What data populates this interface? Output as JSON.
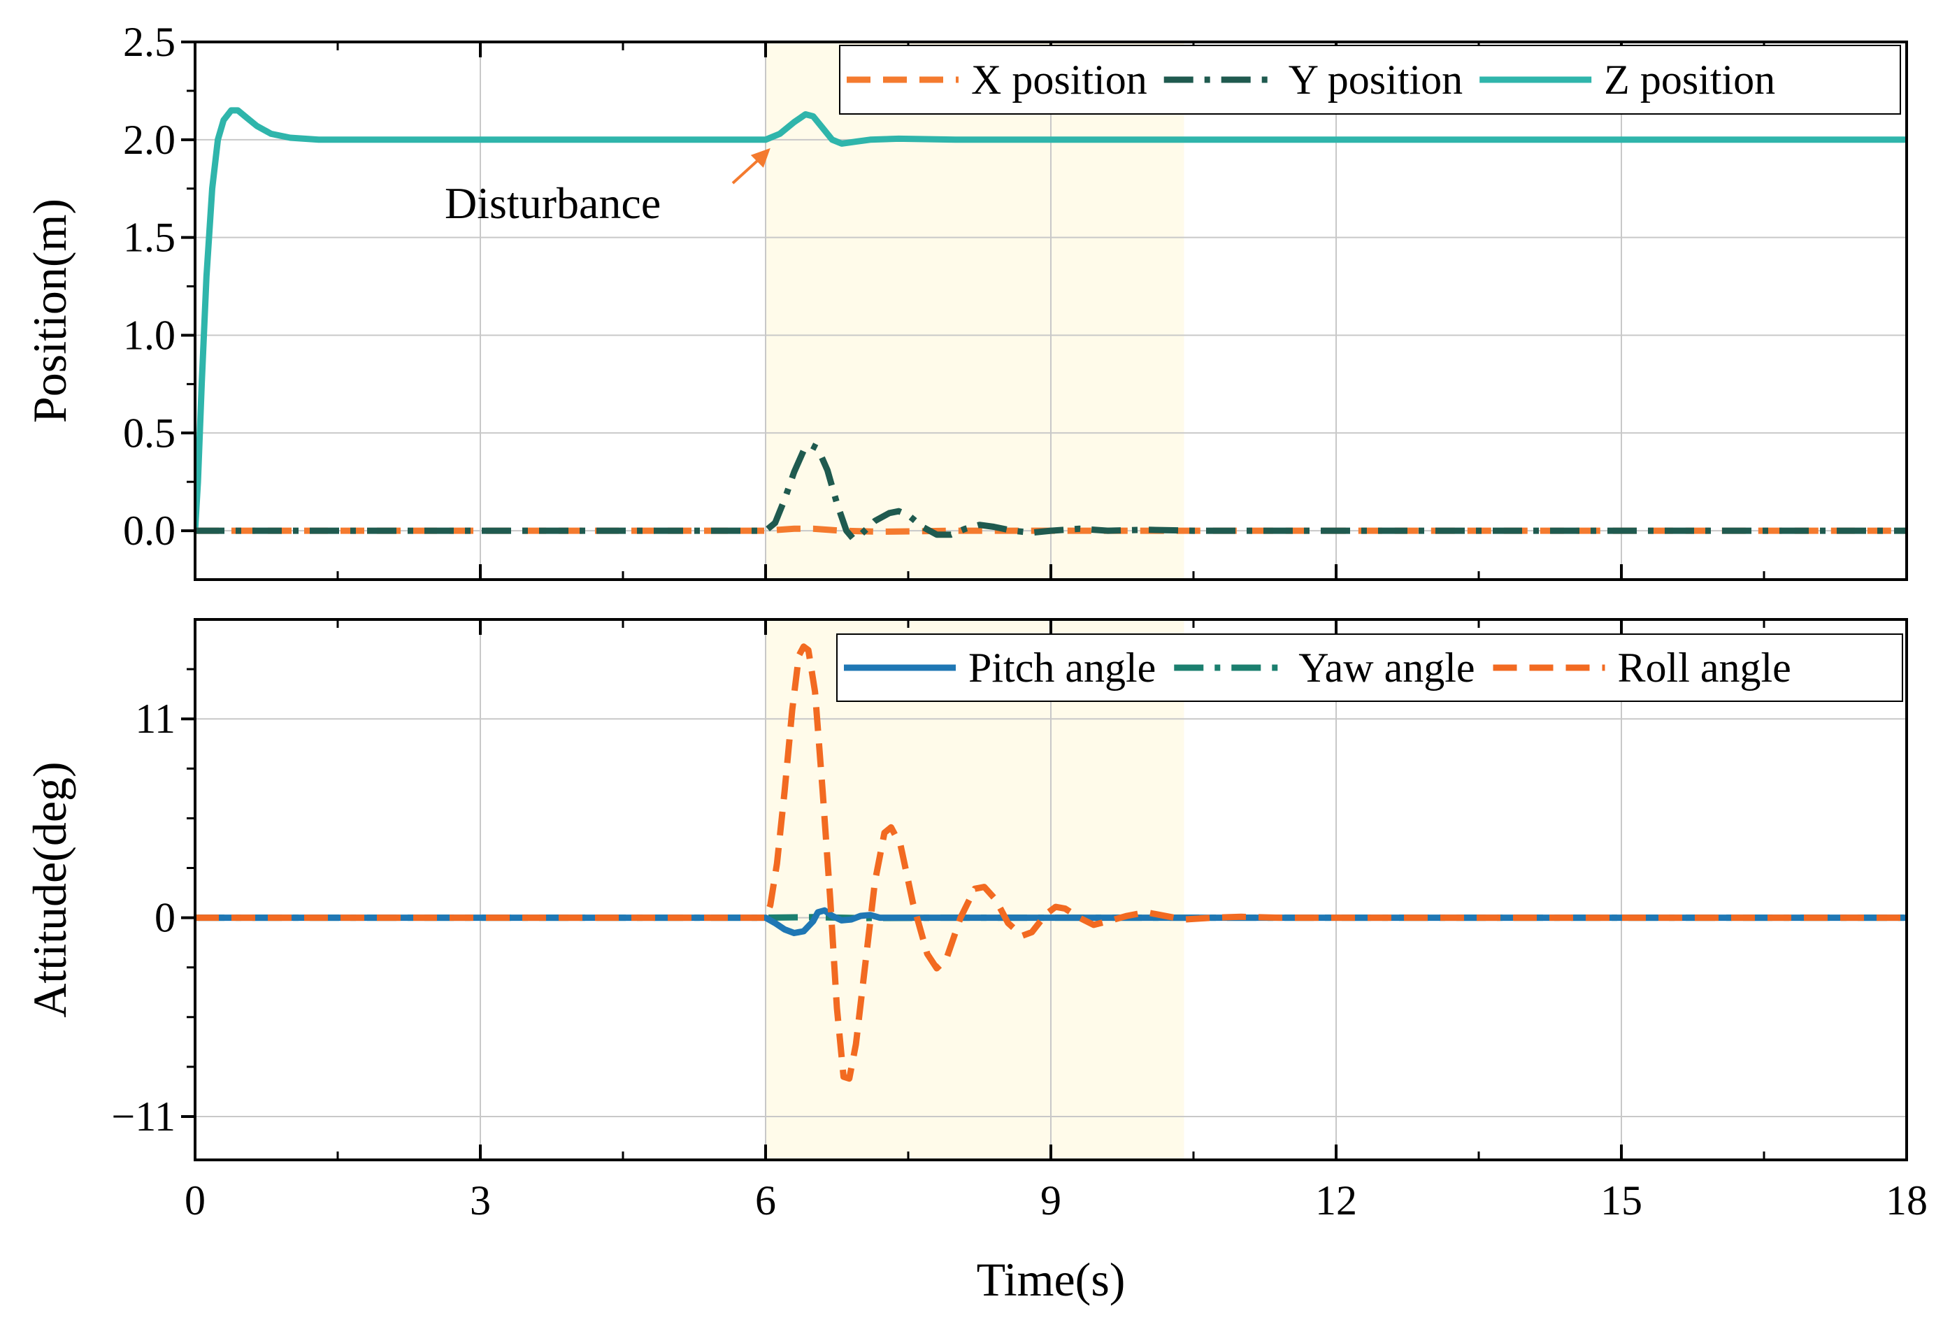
{
  "chart_data": [
    {
      "type": "line",
      "ylabel": "Position(m)",
      "xlim": [
        0,
        18
      ],
      "ylim": [
        -0.25,
        2.5
      ],
      "xticks": [
        0,
        3,
        6,
        9,
        12,
        15,
        18
      ],
      "yticks": [
        0.0,
        0.5,
        1.0,
        1.5,
        2.0,
        2.5
      ],
      "ytick_labels": [
        "0.0",
        "0.5",
        "1.0",
        "1.5",
        "2.0",
        "2.5"
      ],
      "grid": true,
      "legend_position": "top-right",
      "shaded_region": {
        "x_start": 6.0,
        "x_end": 10.4,
        "color": "#fffbea"
      },
      "annotation": {
        "text": "Disturbance",
        "arrow_to": [
          6.05,
          2.0
        ]
      },
      "series": [
        {
          "name": "X position",
          "color": "#f47a2e",
          "style": "dashed",
          "points": [
            [
              0,
              0
            ],
            [
              6.0,
              0
            ],
            [
              6.3,
              0.01
            ],
            [
              6.5,
              0.01
            ],
            [
              6.8,
              0.0
            ],
            [
              7.2,
              -0.005
            ],
            [
              8,
              0
            ],
            [
              18,
              0
            ]
          ]
        },
        {
          "name": "Y position",
          "color": "#1f5a4f",
          "style": "dashdot",
          "points": [
            [
              0,
              0
            ],
            [
              6.0,
              0
            ],
            [
              6.1,
              0.04
            ],
            [
              6.2,
              0.16
            ],
            [
              6.3,
              0.3
            ],
            [
              6.4,
              0.41
            ],
            [
              6.47,
              0.44
            ],
            [
              6.55,
              0.42
            ],
            [
              6.65,
              0.31
            ],
            [
              6.75,
              0.14
            ],
            [
              6.85,
              0.0
            ],
            [
              6.92,
              -0.04
            ],
            [
              7.0,
              -0.02
            ],
            [
              7.15,
              0.05
            ],
            [
              7.3,
              0.09
            ],
            [
              7.4,
              0.1
            ],
            [
              7.5,
              0.08
            ],
            [
              7.65,
              0.02
            ],
            [
              7.8,
              -0.02
            ],
            [
              7.95,
              -0.02
            ],
            [
              8.1,
              0.01
            ],
            [
              8.25,
              0.03
            ],
            [
              8.4,
              0.02
            ],
            [
              8.6,
              0.0
            ],
            [
              8.8,
              -0.01
            ],
            [
              9.0,
              0.0
            ],
            [
              9.3,
              0.01
            ],
            [
              9.6,
              0.0
            ],
            [
              10.0,
              0.005
            ],
            [
              10.5,
              0.0
            ],
            [
              18,
              0
            ]
          ]
        },
        {
          "name": "Z position",
          "color": "#2fb5ab",
          "style": "solid",
          "points": [
            [
              0,
              0
            ],
            [
              0.03,
              0.25
            ],
            [
              0.07,
              0.75
            ],
            [
              0.12,
              1.3
            ],
            [
              0.18,
              1.75
            ],
            [
              0.24,
              2.0
            ],
            [
              0.3,
              2.1
            ],
            [
              0.38,
              2.15
            ],
            [
              0.45,
              2.15
            ],
            [
              0.55,
              2.11
            ],
            [
              0.65,
              2.07
            ],
            [
              0.8,
              2.03
            ],
            [
              1.0,
              2.01
            ],
            [
              1.3,
              2.0
            ],
            [
              6.0,
              2.0
            ],
            [
              6.15,
              2.03
            ],
            [
              6.3,
              2.09
            ],
            [
              6.42,
              2.13
            ],
            [
              6.5,
              2.12
            ],
            [
              6.6,
              2.06
            ],
            [
              6.7,
              2.0
            ],
            [
              6.8,
              1.98
            ],
            [
              6.95,
              1.99
            ],
            [
              7.1,
              2.0
            ],
            [
              7.4,
              2.005
            ],
            [
              8.0,
              2.0
            ],
            [
              18,
              2.0
            ]
          ]
        }
      ]
    },
    {
      "type": "line",
      "xlabel": "Time(s)",
      "ylabel": "Attitude(deg)",
      "xlim": [
        0,
        18
      ],
      "ylim": [
        -13.4,
        16.5
      ],
      "xticks": [
        0,
        3,
        6,
        9,
        12,
        15,
        18
      ],
      "xtick_labels": [
        "0",
        "3",
        "6",
        "9",
        "12",
        "15",
        "18"
      ],
      "yticks": [
        -11,
        0,
        11
      ],
      "ytick_labels": [
        "−11",
        "0",
        "11"
      ],
      "grid": true,
      "legend_position": "top-right",
      "shaded_region": {
        "x_start": 6.0,
        "x_end": 10.4,
        "color": "#fffbea"
      },
      "series": [
        {
          "name": "Pitch angle",
          "color": "#1f77b4",
          "style": "solid",
          "points": [
            [
              0,
              0
            ],
            [
              6.0,
              0
            ],
            [
              6.1,
              -0.3
            ],
            [
              6.2,
              -0.65
            ],
            [
              6.3,
              -0.85
            ],
            [
              6.4,
              -0.75
            ],
            [
              6.5,
              -0.2
            ],
            [
              6.55,
              0.3
            ],
            [
              6.62,
              0.4
            ],
            [
              6.7,
              0.1
            ],
            [
              6.8,
              -0.15
            ],
            [
              6.9,
              -0.1
            ],
            [
              7.0,
              0.1
            ],
            [
              7.1,
              0.15
            ],
            [
              7.2,
              0.0
            ],
            [
              7.5,
              0.0
            ],
            [
              18,
              0
            ]
          ]
        },
        {
          "name": "Yaw angle",
          "color": "#1b7f6f",
          "style": "dashdot",
          "points": [
            [
              0,
              0
            ],
            [
              6.0,
              0
            ],
            [
              6.5,
              0.03
            ],
            [
              7.0,
              -0.02
            ],
            [
              8.0,
              0
            ],
            [
              18,
              0
            ]
          ]
        },
        {
          "name": "Roll angle",
          "color": "#f26a21",
          "style": "dashed",
          "points": [
            [
              0,
              0
            ],
            [
              6.0,
              0
            ],
            [
              6.05,
              0.7
            ],
            [
              6.12,
              3.0
            ],
            [
              6.2,
              7.0
            ],
            [
              6.28,
              11.5
            ],
            [
              6.35,
              14.5
            ],
            [
              6.4,
              15.0
            ],
            [
              6.45,
              14.8
            ],
            [
              6.52,
              12.5
            ],
            [
              6.6,
              7.0
            ],
            [
              6.68,
              1.0
            ],
            [
              6.75,
              -5.0
            ],
            [
              6.82,
              -8.8
            ],
            [
              6.88,
              -8.9
            ],
            [
              6.95,
              -7.0
            ],
            [
              7.05,
              -2.5
            ],
            [
              7.15,
              2.0
            ],
            [
              7.25,
              4.7
            ],
            [
              7.32,
              5.0
            ],
            [
              7.42,
              4.0
            ],
            [
              7.55,
              0.8
            ],
            [
              7.7,
              -2.0
            ],
            [
              7.8,
              -2.8
            ],
            [
              7.9,
              -2.3
            ],
            [
              8.05,
              0.0
            ],
            [
              8.2,
              1.6
            ],
            [
              8.3,
              1.7
            ],
            [
              8.42,
              1.0
            ],
            [
              8.55,
              -0.3
            ],
            [
              8.7,
              -1.0
            ],
            [
              8.8,
              -0.8
            ],
            [
              8.95,
              0.2
            ],
            [
              9.05,
              0.6
            ],
            [
              9.15,
              0.5
            ],
            [
              9.3,
              0.0
            ],
            [
              9.45,
              -0.4
            ],
            [
              9.6,
              -0.2
            ],
            [
              9.8,
              0.1
            ],
            [
              10.0,
              0.3
            ],
            [
              10.15,
              0.15
            ],
            [
              10.4,
              -0.1
            ],
            [
              10.7,
              0.0
            ],
            [
              11.0,
              0.05
            ],
            [
              11.4,
              0.0
            ],
            [
              18,
              0
            ]
          ]
        }
      ]
    }
  ]
}
